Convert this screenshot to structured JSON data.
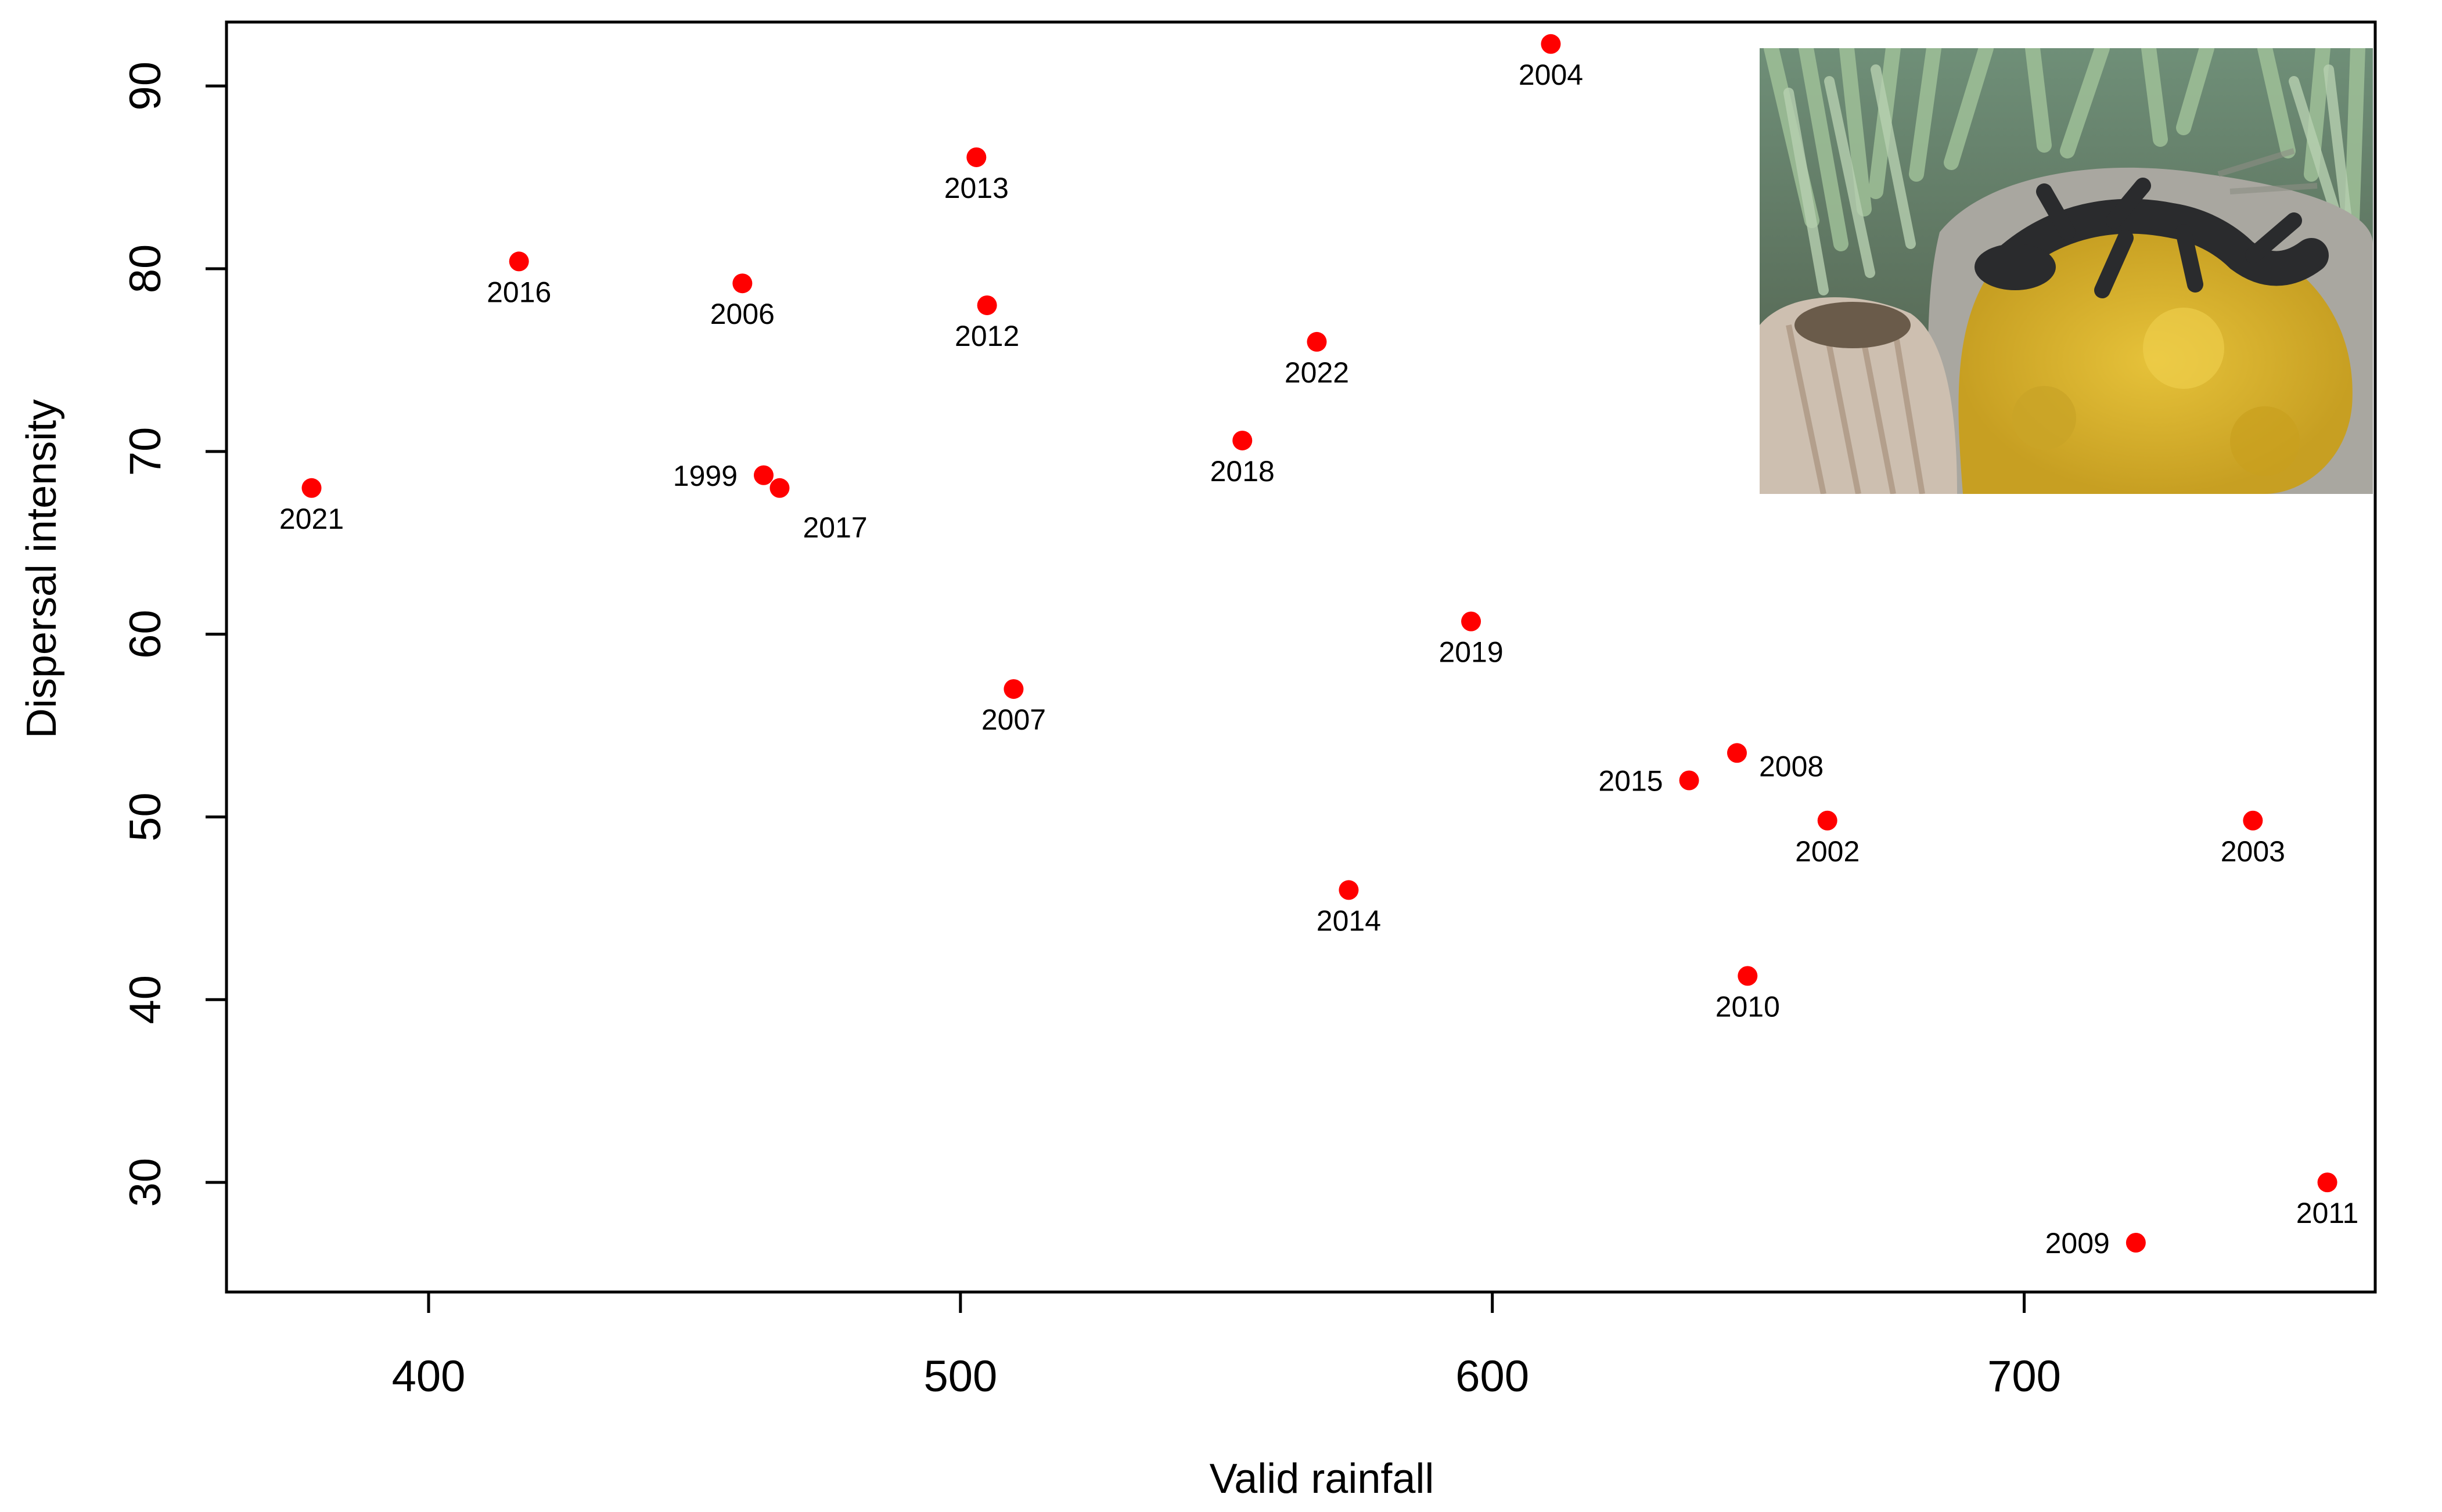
{
  "chart_data": {
    "type": "scatter",
    "title": "",
    "xlabel": "Valid rainfall",
    "ylabel": "Dispersal intensity",
    "xlim": [
      362,
      766
    ],
    "ylim": [
      24,
      93.5
    ],
    "x_ticks": [
      400,
      500,
      600,
      700
    ],
    "y_ticks": [
      30,
      40,
      50,
      60,
      70,
      80,
      90
    ],
    "grid": false,
    "marker_color": "#ff0000",
    "points": [
      {
        "label": "1999",
        "x": 463,
        "y": 68.7,
        "label_pos": "left"
      },
      {
        "label": "2002",
        "x": 663,
        "y": 49.8,
        "label_pos": "below"
      },
      {
        "label": "2003",
        "x": 743,
        "y": 49.8,
        "label_pos": "below"
      },
      {
        "label": "2004",
        "x": 611,
        "y": 92.3,
        "label_pos": "below"
      },
      {
        "label": "2006",
        "x": 459,
        "y": 79.2,
        "label_pos": "below"
      },
      {
        "label": "2007",
        "x": 510,
        "y": 57.0,
        "label_pos": "below"
      },
      {
        "label": "2008",
        "x": 646,
        "y": 53.5,
        "label_pos": "right"
      },
      {
        "label": "2009",
        "x": 721,
        "y": 26.7,
        "label_pos": "left"
      },
      {
        "label": "2010",
        "x": 648,
        "y": 41.3,
        "label_pos": "below"
      },
      {
        "label": "2011",
        "x": 757,
        "y": 30.0,
        "label_pos": "below"
      },
      {
        "label": "2012",
        "x": 505,
        "y": 78.0,
        "label_pos": "below"
      },
      {
        "label": "2013",
        "x": 503,
        "y": 86.1,
        "label_pos": "below"
      },
      {
        "label": "2014",
        "x": 573,
        "y": 46.0,
        "label_pos": "below"
      },
      {
        "label": "2015",
        "x": 637,
        "y": 52.0,
        "label_pos": "left"
      },
      {
        "label": "2016",
        "x": 417,
        "y": 80.4,
        "label_pos": "below"
      },
      {
        "label": "2017",
        "x": 466,
        "y": 68.0,
        "label_pos": "below-right"
      },
      {
        "label": "2018",
        "x": 553,
        "y": 70.6,
        "label_pos": "below"
      },
      {
        "label": "2019",
        "x": 596,
        "y": 60.7,
        "label_pos": "below"
      },
      {
        "label": "2021",
        "x": 378,
        "y": 68.0,
        "label_pos": "below"
      },
      {
        "label": "2022",
        "x": 567,
        "y": 76.0,
        "label_pos": "below"
      }
    ],
    "inset_image": {
      "subject": "dark-lizard-photo",
      "colors": {
        "lizard": "#2a2b2d",
        "lichen": "#d9b52a",
        "rock": "#a9a7a0",
        "grass": "#7f9c86",
        "shell": "#cdbfb0",
        "shadow": "#4f5a4c"
      }
    }
  }
}
